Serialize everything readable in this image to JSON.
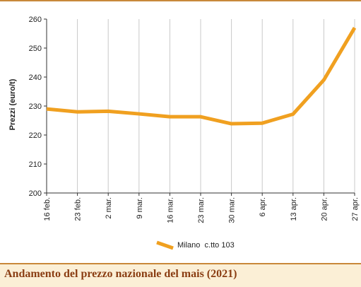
{
  "chart_data": {
    "type": "line",
    "title": "Andamento del prezzo nazionale del mais (2021)",
    "ylabel": "Prezzi (euro/t)",
    "xlabel": "",
    "ylim": [
      200,
      260
    ],
    "yticks": [
      200,
      210,
      220,
      230,
      240,
      250,
      260
    ],
    "categories": [
      "16 feb.",
      "23 feb.",
      "2 mar.",
      "9 mar.",
      "16 mar.",
      "23 mar.",
      "30 mar.",
      "6 apr.",
      "13 apr.",
      "20 apr.",
      "27 apr."
    ],
    "series": [
      {
        "name": "Milano  c.tto 103",
        "color": "#f0a020",
        "values": [
          229,
          228,
          228.2,
          227.3,
          226.3,
          226.3,
          223.9,
          224.1,
          227.2,
          239,
          257
        ]
      }
    ],
    "grid": "vertical",
    "legend": "bottom-center"
  }
}
